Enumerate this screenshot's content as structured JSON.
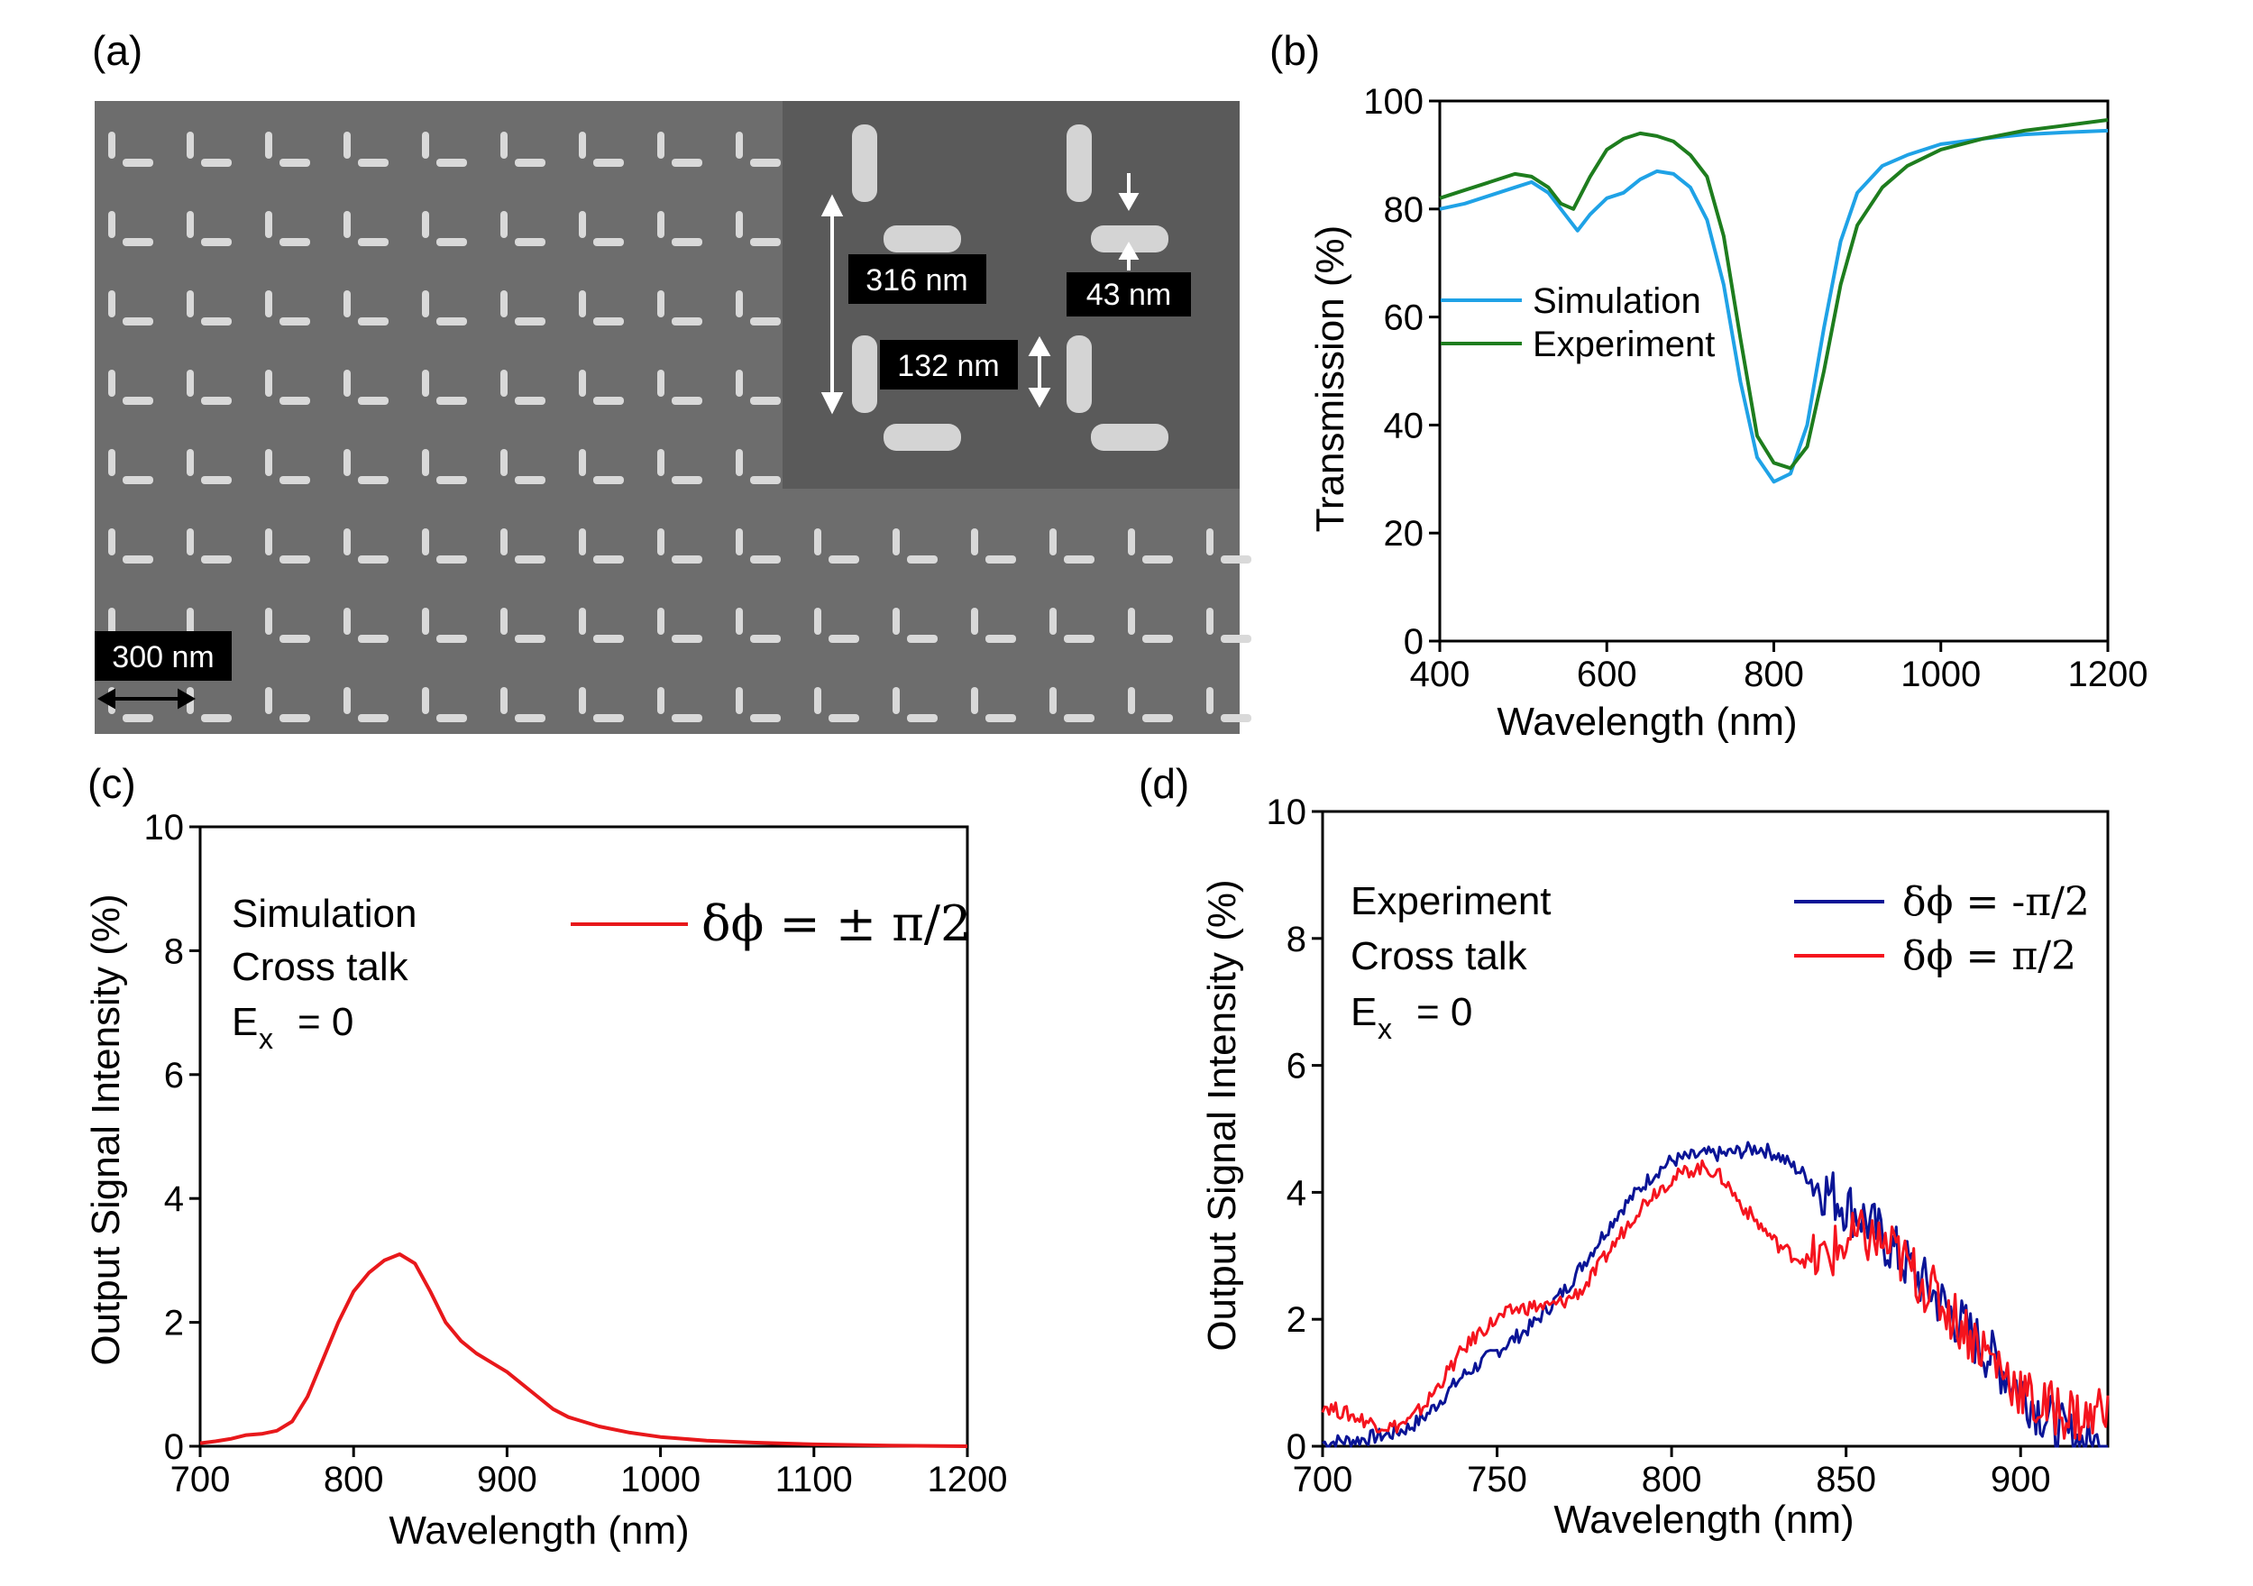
{
  "panels": {
    "a": {
      "label": "(a)",
      "scale_bar": "300 nm",
      "dim_period": "316 nm",
      "dim_length": "132 nm",
      "dim_width": "43 nm"
    }
  },
  "chart_data": [
    {
      "id": "b",
      "panel_label": "(b)",
      "type": "line",
      "title": "",
      "xlabel": "Wavelength (nm)",
      "ylabel": "Transmission (%)",
      "xlim": [
        400,
        1200
      ],
      "ylim": [
        0,
        100
      ],
      "xticks": [
        400,
        600,
        800,
        1000,
        1200
      ],
      "yticks": [
        0,
        20,
        40,
        60,
        80,
        100
      ],
      "legend": "middle-left",
      "series": [
        {
          "name": "Simulation",
          "color": "#1FA2E6",
          "x": [
            400,
            430,
            460,
            490,
            510,
            530,
            550,
            565,
            580,
            600,
            620,
            640,
            660,
            680,
            700,
            720,
            740,
            760,
            780,
            800,
            820,
            840,
            860,
            880,
            900,
            930,
            960,
            1000,
            1050,
            1100,
            1150,
            1200
          ],
          "y": [
            80,
            81,
            82.5,
            84,
            85,
            83,
            79,
            76,
            79,
            82,
            83,
            85.5,
            87,
            86.5,
            84,
            78,
            66,
            48,
            34,
            29.5,
            31,
            40,
            58,
            74,
            83,
            88,
            90,
            92,
            93,
            93.8,
            94.2,
            94.5
          ]
        },
        {
          "name": "Experiment",
          "color": "#1E7D1E",
          "x": [
            400,
            430,
            460,
            490,
            510,
            530,
            545,
            560,
            580,
            600,
            620,
            640,
            660,
            680,
            700,
            720,
            740,
            760,
            780,
            800,
            820,
            840,
            860,
            880,
            900,
            930,
            960,
            1000,
            1050,
            1100,
            1150,
            1200
          ],
          "y": [
            82,
            83.5,
            85,
            86.5,
            86,
            84,
            81,
            80,
            86,
            91,
            93,
            94,
            93.5,
            92.5,
            90,
            86,
            75,
            56,
            38,
            33,
            32,
            36,
            50,
            66,
            77,
            84,
            88,
            91,
            93,
            94.5,
            95.5,
            96.5
          ]
        }
      ]
    },
    {
      "id": "c",
      "panel_label": "(c)",
      "type": "line",
      "title": "",
      "xlabel": "Wavelength (nm)",
      "ylabel": "Output Signal Intensity (%)",
      "xlim": [
        700,
        1200
      ],
      "ylim": [
        0,
        10
      ],
      "xticks": [
        700,
        800,
        900,
        1000,
        1100,
        1200
      ],
      "yticks": [
        0,
        2,
        4,
        6,
        8,
        10
      ],
      "annotation": [
        "Simulation",
        "Cross talk",
        "E",
        "x",
        "= 0"
      ],
      "legend": "top-right",
      "series": [
        {
          "name": "δϕ = ± π/2",
          "color": "#E8181B",
          "x": [
            700,
            710,
            720,
            730,
            740,
            750,
            760,
            770,
            780,
            790,
            800,
            810,
            820,
            830,
            840,
            850,
            860,
            870,
            880,
            890,
            900,
            910,
            920,
            930,
            940,
            960,
            980,
            1000,
            1030,
            1060,
            1100,
            1150,
            1200
          ],
          "y": [
            0.05,
            0.08,
            0.12,
            0.18,
            0.2,
            0.25,
            0.4,
            0.8,
            1.4,
            2.0,
            2.5,
            2.8,
            3.0,
            3.1,
            2.95,
            2.5,
            2.0,
            1.7,
            1.5,
            1.35,
            1.2,
            1.0,
            0.8,
            0.6,
            0.47,
            0.32,
            0.22,
            0.15,
            0.09,
            0.06,
            0.03,
            0.01,
            0.0
          ]
        }
      ]
    },
    {
      "id": "d",
      "panel_label": "(d)",
      "type": "line",
      "title": "",
      "xlabel": "Wavelength (nm)",
      "ylabel": "Output  Signal Intensity (%)",
      "xlim": [
        700,
        925
      ],
      "ylim": [
        0,
        10
      ],
      "xticks": [
        700,
        750,
        800,
        850,
        900
      ],
      "yticks": [
        0,
        2,
        4,
        6,
        8,
        10
      ],
      "annotation": [
        "Experiment",
        "Cross talk",
        "E",
        "x",
        "= 0"
      ],
      "legend": "top-right",
      "series": [
        {
          "name": "δϕ = -π/2",
          "color": "#0A1496",
          "x": [
            700,
            705,
            710,
            715,
            720,
            725,
            730,
            735,
            740,
            745,
            750,
            755,
            760,
            765,
            770,
            775,
            780,
            785,
            790,
            795,
            800,
            805,
            810,
            815,
            820,
            825,
            830,
            835,
            840,
            845,
            850,
            855,
            860,
            865,
            870,
            875,
            880,
            885,
            890,
            895,
            900,
            905,
            910,
            915,
            920,
            925
          ],
          "y": [
            0.05,
            0.08,
            0.1,
            0.15,
            0.2,
            0.3,
            0.5,
            0.8,
            1.1,
            1.3,
            1.5,
            1.7,
            1.9,
            2.2,
            2.5,
            2.9,
            3.3,
            3.7,
            4.0,
            4.3,
            4.5,
            4.55,
            4.6,
            4.6,
            4.65,
            4.7,
            4.6,
            4.4,
            4.2,
            4.0,
            3.8,
            3.6,
            3.3,
            3.0,
            2.7,
            2.4,
            2.1,
            1.8,
            1.5,
            1.2,
            0.9,
            0.6,
            0.3,
            0.1,
            0.0,
            0.0
          ]
        },
        {
          "name": "δϕ =  π/2",
          "color": "#F5141E",
          "x": [
            700,
            705,
            710,
            715,
            720,
            725,
            730,
            735,
            740,
            745,
            750,
            755,
            760,
            765,
            770,
            775,
            780,
            785,
            790,
            795,
            800,
            805,
            810,
            815,
            820,
            825,
            830,
            835,
            840,
            845,
            850,
            855,
            860,
            865,
            870,
            875,
            880,
            885,
            890,
            895,
            900,
            905,
            910,
            915,
            920,
            925
          ],
          "y": [
            0.65,
            0.55,
            0.45,
            0.35,
            0.3,
            0.4,
            0.7,
            1.1,
            1.5,
            1.8,
            2.0,
            2.15,
            2.2,
            2.2,
            2.3,
            2.5,
            2.9,
            3.3,
            3.7,
            4.0,
            4.2,
            4.35,
            4.4,
            4.2,
            3.8,
            3.5,
            3.2,
            3.0,
            2.9,
            3.0,
            3.2,
            3.3,
            3.2,
            3.0,
            2.7,
            2.4,
            2.1,
            1.8,
            1.5,
            1.2,
            0.9,
            0.6,
            0.6,
            0.5,
            0.4,
            0.8
          ]
        }
      ]
    }
  ]
}
